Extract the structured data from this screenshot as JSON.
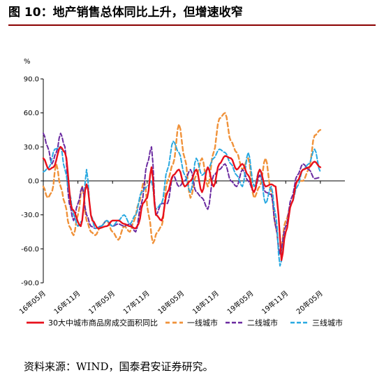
{
  "title": "图 10：地产销售总体同比上升，但增速收窄",
  "source": "资料来源：WIND，国泰君安证券研究。",
  "chart_data": {
    "type": "line",
    "unit_label": "%",
    "ylim": [
      -90,
      90
    ],
    "y_ticks": [
      "90.0",
      "60.0",
      "30.0",
      "0.0",
      "-30.0",
      "-60.0",
      "-90.0"
    ],
    "y_tick_values": [
      90,
      60,
      30,
      0,
      -30,
      -60,
      -90
    ],
    "x_ticks": [
      "16年05月",
      "16年11月",
      "17年05月",
      "17年11月",
      "18年05月",
      "18年11月",
      "19年05月",
      "19年11月",
      "20年05月"
    ],
    "x_tick_index": [
      0,
      24,
      48,
      72,
      96,
      120,
      144,
      168,
      192
    ],
    "x": [
      "16-05-1",
      "16-05-2",
      "16-05-3",
      "16-05-4",
      "16-06-1",
      "16-06-2",
      "16-06-3",
      "16-06-4",
      "16-07-1",
      "16-07-2",
      "16-07-3",
      "16-07-4",
      "16-08-1",
      "16-08-2",
      "16-08-3",
      "16-08-4",
      "16-09-1",
      "16-09-2",
      "16-09-3",
      "16-09-4",
      "16-10-1",
      "16-10-2",
      "16-10-3",
      "16-10-4",
      "16-11-1",
      "16-11-2",
      "16-11-3",
      "16-11-4",
      "16-12-1",
      "16-12-2",
      "16-12-3",
      "16-12-4",
      "17-01-1",
      "17-01-2",
      "17-01-3",
      "17-01-4",
      "17-02-1",
      "17-02-2",
      "17-02-3",
      "17-02-4",
      "17-03-1",
      "17-03-2",
      "17-03-3",
      "17-03-4",
      "17-04-1",
      "17-04-2",
      "17-04-3",
      "17-04-4",
      "17-05-1",
      "17-05-2",
      "17-05-3",
      "17-05-4",
      "17-06-1",
      "17-06-2",
      "17-06-3",
      "17-06-4",
      "17-07-1",
      "17-07-2",
      "17-07-3",
      "17-07-4",
      "17-08-1",
      "17-08-2",
      "17-08-3",
      "17-08-4",
      "17-09-1",
      "17-09-2",
      "17-09-3",
      "17-09-4",
      "17-10-1",
      "17-10-2",
      "17-10-3",
      "17-10-4",
      "17-11-1",
      "17-11-2",
      "17-11-3",
      "17-11-4",
      "17-12-1",
      "17-12-2",
      "17-12-3",
      "17-12-4",
      "18-01-1",
      "18-01-2",
      "18-01-3",
      "18-01-4",
      "18-02-1",
      "18-02-2",
      "18-02-3",
      "18-02-4",
      "18-03-1",
      "18-03-2",
      "18-03-3",
      "18-03-4",
      "18-04-1",
      "18-04-2",
      "18-04-3",
      "18-04-4",
      "18-05-1",
      "18-05-2",
      "18-05-3",
      "18-05-4",
      "18-06-1",
      "18-06-2",
      "18-06-3",
      "18-06-4",
      "18-07-1",
      "18-07-2",
      "18-07-3",
      "18-07-4",
      "18-08-1",
      "18-08-2",
      "18-08-3",
      "18-08-4",
      "18-09-1",
      "18-09-2",
      "18-09-3",
      "18-09-4",
      "18-10-1",
      "18-10-2",
      "18-10-3",
      "18-10-4",
      "18-11-1",
      "18-11-2",
      "18-11-3",
      "18-11-4",
      "18-12-1",
      "18-12-2",
      "18-12-3",
      "18-12-4",
      "19-01-1",
      "19-01-2",
      "19-01-3",
      "19-01-4",
      "19-02-1",
      "19-02-2",
      "19-02-3",
      "19-02-4",
      "19-03-1",
      "19-03-2",
      "19-03-3",
      "19-03-4",
      "19-04-1",
      "19-04-2",
      "19-04-3",
      "19-04-4",
      "19-05-1",
      "19-05-2",
      "19-05-3",
      "19-05-4",
      "19-06-1",
      "19-06-2",
      "19-06-3",
      "19-06-4",
      "19-07-1",
      "19-07-2",
      "19-07-3",
      "19-07-4",
      "19-08-1",
      "19-08-2",
      "19-08-3",
      "19-08-4",
      "19-09-1",
      "19-09-2",
      "19-09-3",
      "19-09-4",
      "19-10-1",
      "19-10-2",
      "19-10-3",
      "19-10-4",
      "19-11-1",
      "19-11-2",
      "19-11-3",
      "19-11-4",
      "19-12-1",
      "19-12-2",
      "19-12-3",
      "19-12-4",
      "20-01-1",
      "20-01-2",
      "20-01-3",
      "20-01-4",
      "20-02-1",
      "20-02-2",
      "20-02-3",
      "20-02-4",
      "20-03-1",
      "20-03-2",
      "20-03-3",
      "20-03-4",
      "20-04-1",
      "20-04-2",
      "20-04-3",
      "20-04-4",
      "20-05-1",
      "20-05-2",
      "20-05-3",
      "20-05-4",
      "20-06-1",
      "20-06-2",
      "20-06-3",
      "20-06-4",
      "20-07-1",
      "20-07-2",
      "20-07-3",
      "20-07-4",
      "20-08-1",
      "20-08-2",
      "20-08-3",
      "20-08-4",
      "20-09-1",
      "20-09-2"
    ],
    "series": [
      {
        "name": "30大中城市商品房成交面积同比",
        "color": "#e8101b",
        "dash": "solid",
        "keypoints": [
          [
            0,
            20
          ],
          [
            4,
            10
          ],
          [
            7,
            12
          ],
          [
            12,
            30
          ],
          [
            15,
            25
          ],
          [
            20,
            -25
          ],
          [
            26,
            -40
          ],
          [
            30,
            -3
          ],
          [
            34,
            -35
          ],
          [
            38,
            -42
          ],
          [
            44,
            -40
          ],
          [
            48,
            -35
          ],
          [
            52,
            -35
          ],
          [
            56,
            -38
          ],
          [
            60,
            -40
          ],
          [
            64,
            -42
          ],
          [
            66,
            -38
          ],
          [
            69,
            -20
          ],
          [
            72,
            -15
          ],
          [
            75,
            12
          ],
          [
            78,
            -30
          ],
          [
            82,
            -35
          ],
          [
            86,
            -10
          ],
          [
            90,
            5
          ],
          [
            94,
            10
          ],
          [
            98,
            -5
          ],
          [
            102,
            0
          ],
          [
            106,
            10
          ],
          [
            110,
            -10
          ],
          [
            114,
            12
          ],
          [
            118,
            -5
          ],
          [
            122,
            15
          ],
          [
            126,
            22
          ],
          [
            130,
            20
          ],
          [
            134,
            10
          ],
          [
            138,
            15
          ],
          [
            142,
            5
          ],
          [
            146,
            -10
          ],
          [
            150,
            10
          ],
          [
            154,
            -5
          ],
          [
            158,
            -3
          ],
          [
            161,
            -5
          ],
          [
            163,
            -30
          ],
          [
            165,
            -70
          ],
          [
            168,
            -45
          ],
          [
            172,
            -20
          ],
          [
            176,
            0
          ],
          [
            180,
            10
          ],
          [
            184,
            12
          ],
          [
            188,
            17
          ],
          [
            192,
            12
          ]
        ]
      },
      {
        "name": "一线城市",
        "color": "#f0923a",
        "dash": "orange",
        "keypoints": [
          [
            0,
            -5
          ],
          [
            3,
            -15
          ],
          [
            6,
            -10
          ],
          [
            9,
            15
          ],
          [
            12,
            -5
          ],
          [
            15,
            -20
          ],
          [
            18,
            -40
          ],
          [
            21,
            -48
          ],
          [
            24,
            -30
          ],
          [
            27,
            -5
          ],
          [
            30,
            -35
          ],
          [
            33,
            -45
          ],
          [
            36,
            -48
          ],
          [
            40,
            -40
          ],
          [
            44,
            -35
          ],
          [
            48,
            -45
          ],
          [
            52,
            -52
          ],
          [
            56,
            -40
          ],
          [
            60,
            -45
          ],
          [
            63,
            -35
          ],
          [
            66,
            -20
          ],
          [
            70,
            0
          ],
          [
            73,
            -30
          ],
          [
            76,
            -55
          ],
          [
            79,
            -45
          ],
          [
            82,
            -40
          ],
          [
            86,
            0
          ],
          [
            90,
            15
          ],
          [
            94,
            50
          ],
          [
            98,
            20
          ],
          [
            102,
            -15
          ],
          [
            106,
            5
          ],
          [
            110,
            20
          ],
          [
            114,
            -5
          ],
          [
            118,
            25
          ],
          [
            122,
            55
          ],
          [
            126,
            60
          ],
          [
            130,
            35
          ],
          [
            134,
            25
          ],
          [
            138,
            10
          ],
          [
            142,
            20
          ],
          [
            146,
            -15
          ],
          [
            150,
            -5
          ],
          [
            154,
            20
          ],
          [
            158,
            -10
          ],
          [
            161,
            -40
          ],
          [
            164,
            -65
          ],
          [
            168,
            -35
          ],
          [
            172,
            -20
          ],
          [
            176,
            0
          ],
          [
            180,
            0
          ],
          [
            184,
            10
          ],
          [
            188,
            40
          ],
          [
            192,
            45
          ]
        ]
      },
      {
        "name": "二线城市",
        "color": "#6a2aa0",
        "dash": "purple",
        "keypoints": [
          [
            0,
            42
          ],
          [
            3,
            30
          ],
          [
            6,
            15
          ],
          [
            9,
            25
          ],
          [
            12,
            42
          ],
          [
            15,
            30
          ],
          [
            18,
            -20
          ],
          [
            21,
            -35
          ],
          [
            24,
            -20
          ],
          [
            27,
            -5
          ],
          [
            30,
            -30
          ],
          [
            33,
            -40
          ],
          [
            36,
            -42
          ],
          [
            40,
            -40
          ],
          [
            44,
            -35
          ],
          [
            48,
            -40
          ],
          [
            52,
            -38
          ],
          [
            56,
            -40
          ],
          [
            60,
            -38
          ],
          [
            64,
            -45
          ],
          [
            68,
            -20
          ],
          [
            72,
            15
          ],
          [
            75,
            30
          ],
          [
            78,
            -30
          ],
          [
            82,
            -20
          ],
          [
            86,
            -20
          ],
          [
            90,
            5
          ],
          [
            94,
            -5
          ],
          [
            98,
            0
          ],
          [
            102,
            10
          ],
          [
            106,
            -10
          ],
          [
            110,
            -15
          ],
          [
            114,
            -25
          ],
          [
            118,
            5
          ],
          [
            122,
            10
          ],
          [
            126,
            15
          ],
          [
            130,
            0
          ],
          [
            134,
            -5
          ],
          [
            138,
            10
          ],
          [
            142,
            0
          ],
          [
            146,
            -10
          ],
          [
            150,
            5
          ],
          [
            154,
            -10
          ],
          [
            158,
            -12
          ],
          [
            161,
            -40
          ],
          [
            164,
            -65
          ],
          [
            168,
            -40
          ],
          [
            172,
            -15
          ],
          [
            176,
            5
          ],
          [
            180,
            15
          ],
          [
            184,
            10
          ],
          [
            188,
            2
          ],
          [
            192,
            3
          ]
        ]
      },
      {
        "name": "三线城市",
        "color": "#29a9e1",
        "dash": "blue",
        "keypoints": [
          [
            0,
            8
          ],
          [
            4,
            12
          ],
          [
            8,
            28
          ],
          [
            12,
            30
          ],
          [
            15,
            10
          ],
          [
            18,
            -10
          ],
          [
            21,
            -30
          ],
          [
            24,
            -40
          ],
          [
            27,
            -35
          ],
          [
            30,
            10
          ],
          [
            33,
            -30
          ],
          [
            36,
            -42
          ],
          [
            40,
            -40
          ],
          [
            44,
            -35
          ],
          [
            48,
            -40
          ],
          [
            52,
            -35
          ],
          [
            56,
            -30
          ],
          [
            60,
            -38
          ],
          [
            64,
            -30
          ],
          [
            68,
            -10
          ],
          [
            72,
            -5
          ],
          [
            75,
            0
          ],
          [
            78,
            -25
          ],
          [
            82,
            -20
          ],
          [
            86,
            10
          ],
          [
            90,
            35
          ],
          [
            94,
            25
          ],
          [
            98,
            5
          ],
          [
            102,
            -10
          ],
          [
            106,
            20
          ],
          [
            110,
            5
          ],
          [
            114,
            10
          ],
          [
            118,
            20
          ],
          [
            122,
            28
          ],
          [
            126,
            25
          ],
          [
            130,
            15
          ],
          [
            134,
            5
          ],
          [
            138,
            -5
          ],
          [
            142,
            25
          ],
          [
            146,
            -5
          ],
          [
            150,
            10
          ],
          [
            154,
            -20
          ],
          [
            158,
            -5
          ],
          [
            161,
            -30
          ],
          [
            164,
            -75
          ],
          [
            168,
            -45
          ],
          [
            172,
            -20
          ],
          [
            176,
            -5
          ],
          [
            180,
            10
          ],
          [
            184,
            15
          ],
          [
            188,
            28
          ],
          [
            192,
            8
          ]
        ]
      }
    ],
    "legend": [
      "30大中城市商品房成交面积同比",
      "一线城市",
      "二线城市",
      "三线城市"
    ],
    "legend_position": "bottom",
    "grid": false
  }
}
